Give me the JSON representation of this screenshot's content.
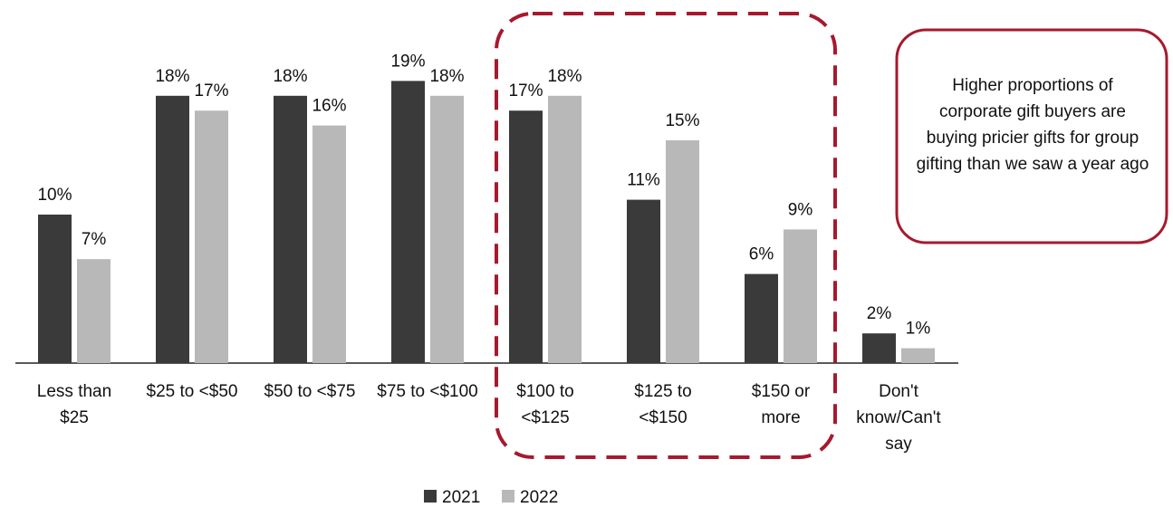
{
  "chart_data": {
    "type": "bar",
    "categories": [
      "Less than\n$25",
      "$25 to <$50",
      "$50 to <$75",
      "$75 to <$100",
      "$100 to\n<$125",
      "$125 to\n<$150",
      "$150 or\nmore",
      "Don't\nknow/Can't\nsay"
    ],
    "series": [
      {
        "name": "2021",
        "color": "#3a3a3a",
        "values": [
          10,
          18,
          18,
          19,
          17,
          11,
          6,
          2
        ],
        "value_labels": [
          "10%",
          "18%",
          "18%",
          "19%",
          "17%",
          "11%",
          "6%",
          "2%"
        ]
      },
      {
        "name": "2022",
        "color": "#b8b8b8",
        "values": [
          7,
          17,
          16,
          18,
          18,
          15,
          9,
          1
        ],
        "value_labels": [
          "7%",
          "17%",
          "16%",
          "18%",
          "18%",
          "15%",
          "9%",
          "1%"
        ]
      }
    ],
    "ylim": [
      0,
      24
    ],
    "annotation": "Higher proportions of corporate gift buyers are buying pricier gifts for group gifting than we saw a year ago"
  }
}
